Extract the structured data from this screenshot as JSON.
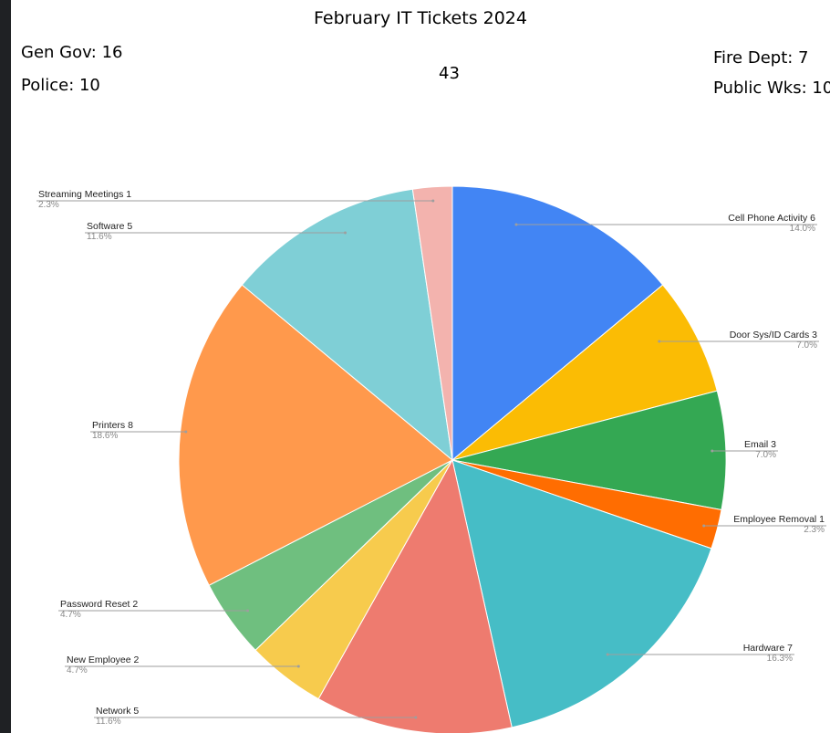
{
  "summary": {
    "gen_gov": "Gen Gov:  16",
    "police": "Police:  10",
    "total": "43",
    "fire_dept": "Fire Dept:  7",
    "public_wks": "Public Wks:  10"
  },
  "chart_data": {
    "type": "pie",
    "title": "February IT Tickets 2024",
    "slices": [
      {
        "label": "Cell Phone Activity",
        "value": 6,
        "percent": "14.0%",
        "color": "#4285f4"
      },
      {
        "label": "Door Sys/ID Cards",
        "value": 3,
        "percent": "7.0%",
        "color": "#fbbc04"
      },
      {
        "label": "Email",
        "value": 3,
        "percent": "7.0%",
        "color": "#34a853"
      },
      {
        "label": "Employee Removal",
        "value": 1,
        "percent": "2.3%",
        "color": "#ff6d01"
      },
      {
        "label": "Hardware",
        "value": 7,
        "percent": "16.3%",
        "color": "#46bdc6"
      },
      {
        "label": "Network",
        "value": 5,
        "percent": "11.6%",
        "color": "#ee7b6f"
      },
      {
        "label": "New Employee",
        "value": 2,
        "percent": "4.7%",
        "color": "#f7cb4d"
      },
      {
        "label": "Password Reset",
        "value": 2,
        "percent": "4.7%",
        "color": "#6fbf7f"
      },
      {
        "label": "Printers",
        "value": 8,
        "percent": "18.6%",
        "color": "#ff994c"
      },
      {
        "label": "Software",
        "value": 5,
        "percent": "11.6%",
        "color": "#7fcfd6"
      },
      {
        "label": "Streaming Meetings",
        "value": 1,
        "percent": "2.3%",
        "color": "#f3b3ae"
      }
    ],
    "labels_position": "outside with leader lines"
  }
}
